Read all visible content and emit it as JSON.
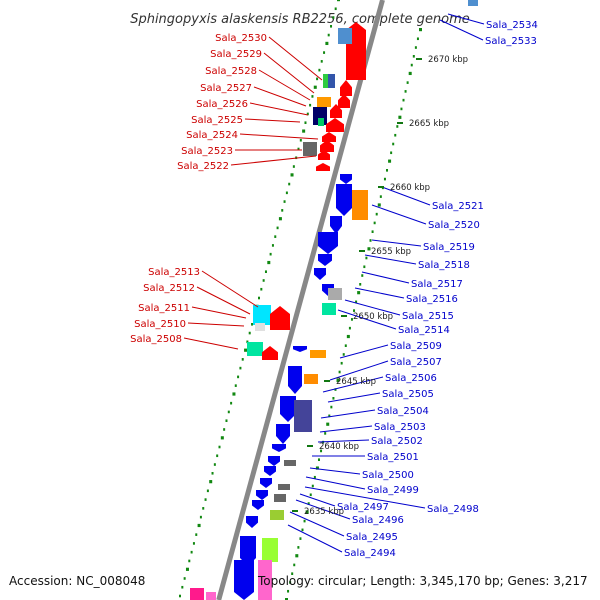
{
  "title": "Sphingopyxis alaskensis RB2256, complete genome",
  "footer": {
    "accession": "Accession: NC_008048",
    "topology": "Topology: circular; Length: 3,345,170 bp; Genes: 3,217"
  },
  "colors": {
    "forward_label": "#cc0000",
    "reverse_label": "#0000cc",
    "backbone": "#888888",
    "tick_dots": "#118811"
  },
  "kbp_marks": [
    "2670 kbp",
    "2665 kbp",
    "2660 kbp",
    "2655 kbp",
    "2650 kbp",
    "2645 kbp",
    "2640 kbp",
    "2635 kbp"
  ],
  "forward_genes": [
    "Sala_2530",
    "Sala_2529",
    "Sala_2528",
    "Sala_2527",
    "Sala_2526",
    "Sala_2525",
    "Sala_2524",
    "Sala_2523",
    "Sala_2522",
    "Sala_2513",
    "Sala_2512",
    "Sala_2511",
    "Sala_2510",
    "Sala_2508"
  ],
  "reverse_genes": [
    "Sala_2534",
    "Sala_2533",
    "Sala_2521",
    "Sala_2520",
    "Sala_2519",
    "Sala_2518",
    "Sala_2517",
    "Sala_2516",
    "Sala_2515",
    "Sala_2514",
    "Sala_2509",
    "Sala_2507",
    "Sala_2506",
    "Sala_2505",
    "Sala_2504",
    "Sala_2503",
    "Sala_2502",
    "Sala_2501",
    "Sala_2500",
    "Sala_2499",
    "Sala_2498",
    "Sala_2497",
    "Sala_2496",
    "Sala_2495",
    "Sala_2494"
  ]
}
